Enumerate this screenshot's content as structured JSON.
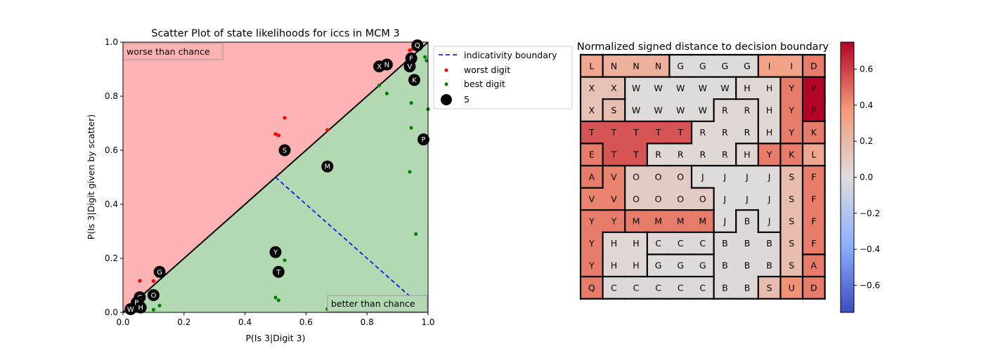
{
  "chart_data": [
    {
      "type": "scatter",
      "title": "Scatter Plot of state likelihoods for iccs in MCM 3",
      "xlabel": "P(Is 3|Digit 3)",
      "ylabel": "P(Is 3|Digit given by scatter)",
      "xlim": [
        0,
        1
      ],
      "ylim": [
        0,
        1
      ],
      "xticks": [
        "0.0",
        "0.2",
        "0.4",
        "0.6",
        "0.8",
        "1.0"
      ],
      "yticks": [
        "0.0",
        "0.2",
        "0.4",
        "0.6",
        "0.8",
        "1.0"
      ],
      "grid": false,
      "legend_placement": "outside-right",
      "regions": {
        "worse": {
          "label": "worse than chance",
          "color": "#ffb3b3"
        },
        "better": {
          "label": "better than chance",
          "color": "#b3d9b3"
        }
      },
      "legend": [
        {
          "label": "indicativity boundary",
          "kind": "dashed-line",
          "color": "#0000ff"
        },
        {
          "label": "worst digit",
          "kind": "small-dot",
          "color": "#ff0000"
        },
        {
          "label": "best digit",
          "kind": "small-dot",
          "color": "#008000"
        },
        {
          "label": "5",
          "kind": "big-dot",
          "color": "#000000"
        }
      ],
      "boundary_line": [
        [
          0.5,
          0.5
        ],
        [
          1.0,
          0.0
        ]
      ],
      "diagonal_line": [
        [
          0,
          0
        ],
        [
          1,
          1
        ]
      ],
      "worst_points": [
        [
          0.055,
          0.117
        ],
        [
          0.1,
          0.116
        ],
        [
          0.5,
          0.66
        ],
        [
          0.51,
          0.655
        ],
        [
          0.53,
          0.72
        ],
        [
          0.67,
          0.675
        ],
        [
          0.94,
          0.97
        ],
        [
          0.95,
          0.975
        ],
        [
          0.97,
          0.99
        ]
      ],
      "best_points": [
        [
          0.02,
          0.003
        ],
        [
          0.045,
          0.01
        ],
        [
          0.1,
          0.01
        ],
        [
          0.12,
          0.025
        ],
        [
          0.5,
          0.055
        ],
        [
          0.51,
          0.045
        ],
        [
          0.53,
          0.193
        ],
        [
          0.67,
          0.012
        ],
        [
          0.84,
          0.84
        ],
        [
          0.865,
          0.81
        ],
        [
          0.94,
          0.52
        ],
        [
          0.945,
          0.775
        ],
        [
          0.945,
          0.683
        ],
        [
          0.96,
          0.29
        ],
        [
          0.99,
          0.945
        ],
        [
          0.995,
          0.932
        ],
        [
          1.0,
          0.752
        ]
      ],
      "big_points": [
        {
          "label": "G",
          "x": 0.12,
          "y": 0.15
        },
        {
          "label": "S",
          "x": 0.53,
          "y": 0.6
        },
        {
          "label": "M",
          "x": 0.67,
          "y": 0.54
        },
        {
          "label": "Y",
          "x": 0.5,
          "y": 0.223
        },
        {
          "label": "T",
          "x": 0.51,
          "y": 0.15
        },
        {
          "label": "C",
          "x": 0.055,
          "y": 0.056
        },
        {
          "label": "O",
          "x": 0.1,
          "y": 0.064
        },
        {
          "label": "B",
          "x": 0.045,
          "y": 0.036
        },
        {
          "label": "W",
          "x": 0.025,
          "y": 0.012
        },
        {
          "label": "H",
          "x": 0.058,
          "y": 0.018
        },
        {
          "label": "X",
          "x": 0.84,
          "y": 0.91
        },
        {
          "label": "N",
          "x": 0.865,
          "y": 0.917
        },
        {
          "label": "F",
          "x": 0.945,
          "y": 0.94
        },
        {
          "label": "V",
          "x": 0.94,
          "y": 0.91
        },
        {
          "label": "K",
          "x": 0.955,
          "y": 0.86
        },
        {
          "label": "P",
          "x": 0.985,
          "y": 0.64
        },
        {
          "label": "Q",
          "x": 0.965,
          "y": 0.988
        }
      ],
      "annotations": [
        {
          "text": "worse than chance",
          "position": "top-left"
        },
        {
          "text": "better than chance",
          "position": "bottom-right"
        }
      ]
    },
    {
      "type": "heatmap",
      "title": "Normalized signed distance to decision boundary",
      "colormap": "coolwarm",
      "vmin": -0.75,
      "vmax": 0.75,
      "colorbar_ticks": [
        "0.6",
        "0.4",
        "0.2",
        "0.0",
        "−0.2",
        "−0.4",
        "−0.6"
      ],
      "colorbar_tick_values": [
        0.6,
        0.4,
        0.2,
        0.0,
        -0.2,
        -0.4,
        -0.6
      ],
      "grid_labels": [
        [
          "L",
          "N",
          "N",
          "N",
          "G",
          "G",
          "G",
          "G",
          "I",
          "I",
          "D"
        ],
        [
          "X",
          "X",
          "W",
          "W",
          "W",
          "W",
          "W",
          "H",
          "H",
          "Y",
          "P"
        ],
        [
          "X",
          "S",
          "W",
          "W",
          "W",
          "W",
          "R",
          "R",
          "H",
          "Y",
          "P"
        ],
        [
          "T",
          "T",
          "T",
          "T",
          "T",
          "R",
          "R",
          "R",
          "H",
          "Y",
          "K"
        ],
        [
          "E",
          "T",
          "T",
          "R",
          "R",
          "R",
          "R",
          "H",
          "Y",
          "K",
          "L"
        ],
        [
          "A",
          "V",
          "O",
          "O",
          "O",
          "J",
          "J",
          "J",
          "J",
          "S",
          "F"
        ],
        [
          "V",
          "V",
          "O",
          "O",
          "O",
          "O",
          "J",
          "J",
          "J",
          "S",
          "F"
        ],
        [
          "Y",
          "Y",
          "M",
          "M",
          "M",
          "M",
          "J",
          "B",
          "J",
          "S",
          "F"
        ],
        [
          "Y",
          "H",
          "H",
          "C",
          "C",
          "C",
          "B",
          "B",
          "B",
          "S",
          "F"
        ],
        [
          "Y",
          "H",
          "H",
          "G",
          "G",
          "G",
          "B",
          "B",
          "B",
          "S",
          "A"
        ],
        [
          "Q",
          "C",
          "C",
          "C",
          "C",
          "C",
          "B",
          "B",
          "S",
          "U",
          "D"
        ]
      ],
      "region_values": {
        "L": 0.3,
        "N": 0.25,
        "G": 0.01,
        "I": 0.33,
        "D": 0.45,
        "X": 0.15,
        "W": 0.01,
        "H": 0.03,
        "Y": 0.45,
        "P": 0.75,
        "S": 0.18,
        "R": 0.03,
        "T": 0.55,
        "K": 0.45,
        "E": 0.45,
        "A": 0.45,
        "V": 0.43,
        "O": 0.1,
        "J": 0.01,
        "F": 0.45,
        "M": 0.45,
        "B": 0.02,
        "C": 0.02,
        "Q": 0.45,
        "U": 0.4
      }
    }
  ]
}
